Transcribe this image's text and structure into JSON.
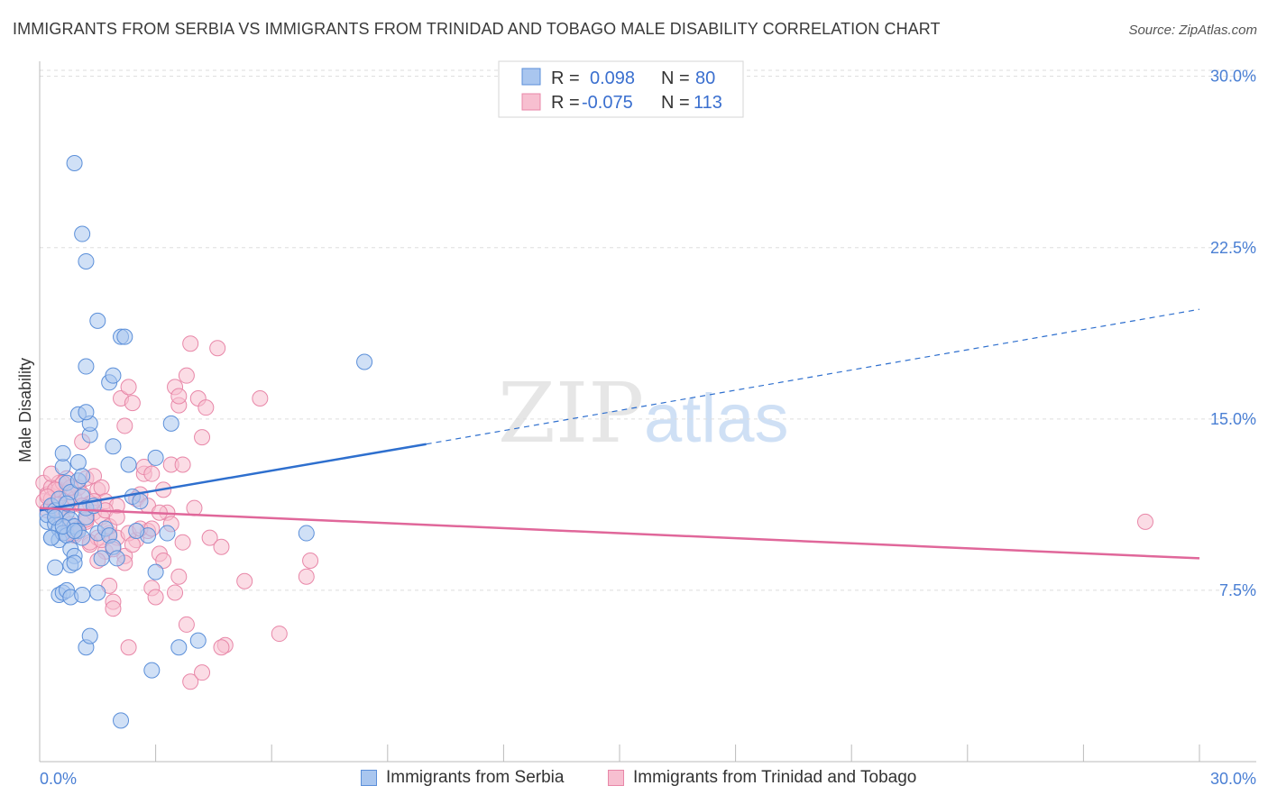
{
  "header": {
    "title": "IMMIGRANTS FROM SERBIA VS IMMIGRANTS FROM TRINIDAD AND TOBAGO MALE DISABILITY CORRELATION CHART",
    "source": "Source: ZipAtlas.com"
  },
  "watermark": {
    "zip": "ZIP",
    "atlas": "atlas"
  },
  "legend": {
    "rows": [
      {
        "r_label": "R =",
        "r_value": "0.098",
        "n_label": "N =",
        "n_value": "80"
      },
      {
        "r_label": "R =",
        "r_value": "-0.075",
        "n_label": "N =",
        "n_value": "113"
      }
    ]
  },
  "bottom_legend": {
    "serbia": "Immigrants from Serbia",
    "trinidad": "Immigrants from Trinidad and Tobago"
  },
  "colors": {
    "serbia_fill": "#a9c6ef",
    "serbia_stroke": "#5b8fd9",
    "serbia_line": "#2e6fce",
    "trinidad_fill": "#f7bfd0",
    "trinidad_stroke": "#e887a8",
    "trinidad_line": "#e0679a",
    "tick_text": "#4a7fd4",
    "grid": "#dddddd"
  },
  "chart_data": {
    "type": "scatter",
    "title": "IMMIGRANTS FROM SERBIA VS IMMIGRANTS FROM TRINIDAD AND TOBAGO MALE DISABILITY CORRELATION CHART",
    "xlabel": "",
    "ylabel": "Male Disability",
    "xlim": [
      0,
      30
    ],
    "ylim": [
      0,
      30.5
    ],
    "x_ticks": [
      "0.0%",
      "30.0%"
    ],
    "y_ticks": [
      {
        "value": 7.5,
        "label": "7.5%"
      },
      {
        "value": 15.0,
        "label": "15.0%"
      },
      {
        "value": 22.5,
        "label": "22.5%"
      },
      {
        "value": 30.0,
        "label": "30.0%"
      }
    ],
    "grid": "horizontal dashed",
    "legend_position": "top-center",
    "series": [
      {
        "name": "Immigrants from Serbia",
        "R": 0.098,
        "N": 80,
        "trend": {
          "x0": 0,
          "y0": 11.0,
          "x1": 10.0,
          "y1": 13.9,
          "extend_dashed_to_x": 30,
          "y_at_end": 19.8
        },
        "points": [
          [
            0.2,
            10.5
          ],
          [
            0.2,
            10.8
          ],
          [
            0.3,
            11.2
          ],
          [
            0.3,
            9.8
          ],
          [
            0.4,
            10.4
          ],
          [
            0.4,
            11.0
          ],
          [
            0.5,
            10.2
          ],
          [
            0.5,
            9.7
          ],
          [
            0.5,
            11.5
          ],
          [
            0.6,
            10.0
          ],
          [
            0.6,
            12.9
          ],
          [
            0.6,
            13.5
          ],
          [
            0.7,
            10.9
          ],
          [
            0.7,
            9.9
          ],
          [
            0.7,
            12.2
          ],
          [
            0.8,
            10.6
          ],
          [
            0.8,
            9.3
          ],
          [
            0.8,
            11.8
          ],
          [
            0.9,
            10.3
          ],
          [
            0.9,
            9.0
          ],
          [
            0.4,
            8.5
          ],
          [
            0.5,
            7.3
          ],
          [
            0.6,
            7.4
          ],
          [
            0.7,
            7.5
          ],
          [
            0.8,
            7.2
          ],
          [
            0.8,
            8.6
          ],
          [
            0.9,
            8.7
          ],
          [
            1.0,
            10.1
          ],
          [
            1.0,
            12.3
          ],
          [
            1.0,
            13.1
          ],
          [
            1.0,
            15.2
          ],
          [
            1.1,
            11.6
          ],
          [
            1.1,
            12.5
          ],
          [
            1.1,
            9.8
          ],
          [
            1.2,
            10.7
          ],
          [
            1.2,
            11.1
          ],
          [
            1.3,
            14.3
          ],
          [
            1.3,
            14.8
          ],
          [
            1.4,
            11.2
          ],
          [
            1.5,
            10.0
          ],
          [
            1.5,
            7.4
          ],
          [
            1.6,
            8.9
          ],
          [
            1.7,
            10.2
          ],
          [
            1.8,
            9.9
          ],
          [
            1.2,
            15.3
          ],
          [
            1.9,
            13.8
          ],
          [
            1.9,
            9.4
          ],
          [
            2.0,
            8.9
          ],
          [
            1.1,
            7.3
          ],
          [
            1.2,
            5.0
          ],
          [
            1.3,
            5.5
          ],
          [
            0.9,
            26.2
          ],
          [
            1.1,
            23.1
          ],
          [
            1.2,
            21.9
          ],
          [
            1.5,
            19.3
          ],
          [
            2.1,
            18.6
          ],
          [
            2.2,
            18.6
          ],
          [
            1.2,
            17.3
          ],
          [
            1.8,
            16.6
          ],
          [
            1.9,
            16.9
          ],
          [
            2.3,
            13.0
          ],
          [
            2.4,
            11.6
          ],
          [
            2.6,
            11.4
          ],
          [
            2.8,
            9.9
          ],
          [
            3.0,
            8.3
          ],
          [
            3.0,
            13.3
          ],
          [
            3.3,
            10.0
          ],
          [
            3.4,
            14.8
          ],
          [
            2.9,
            4.0
          ],
          [
            3.6,
            5.0
          ],
          [
            4.1,
            5.3
          ],
          [
            2.1,
            1.8
          ],
          [
            0.3,
            9.8
          ],
          [
            0.4,
            10.7
          ],
          [
            0.6,
            10.3
          ],
          [
            0.7,
            11.3
          ],
          [
            0.9,
            10.1
          ],
          [
            6.9,
            10.0
          ],
          [
            8.4,
            17.5
          ],
          [
            2.5,
            10.1
          ]
        ]
      },
      {
        "name": "Immigrants from Trinidad and Tobago",
        "R": -0.075,
        "N": 113,
        "trend": {
          "x0": 0,
          "y0": 11.1,
          "x1": 30,
          "y1": 8.9
        },
        "points": [
          [
            0.1,
            11.4
          ],
          [
            0.1,
            12.2
          ],
          [
            0.2,
            11.0
          ],
          [
            0.2,
            11.7
          ],
          [
            0.3,
            12.0
          ],
          [
            0.3,
            11.5
          ],
          [
            0.4,
            10.8
          ],
          [
            0.4,
            11.3
          ],
          [
            0.5,
            12.2
          ],
          [
            0.5,
            11.9
          ],
          [
            0.6,
            11.1
          ],
          [
            0.6,
            10.6
          ],
          [
            0.7,
            11.8
          ],
          [
            0.7,
            12.4
          ],
          [
            0.8,
            11.2
          ],
          [
            0.8,
            10.4
          ],
          [
            0.9,
            9.9
          ],
          [
            0.9,
            11.5
          ],
          [
            1.0,
            12.0
          ],
          [
            1.0,
            10.2
          ],
          [
            1.1,
            14.0
          ],
          [
            1.1,
            11.7
          ],
          [
            1.2,
            10.5
          ],
          [
            1.2,
            12.4
          ],
          [
            1.3,
            11.3
          ],
          [
            1.3,
            9.5
          ],
          [
            1.4,
            10.9
          ],
          [
            1.4,
            12.5
          ],
          [
            1.5,
            11.9
          ],
          [
            1.5,
            9.8
          ],
          [
            1.6,
            10.7
          ],
          [
            1.6,
            12.0
          ],
          [
            1.7,
            11.4
          ],
          [
            1.7,
            9.2
          ],
          [
            1.8,
            10.0
          ],
          [
            1.8,
            7.7
          ],
          [
            1.9,
            7.0
          ],
          [
            1.9,
            6.7
          ],
          [
            2.0,
            11.2
          ],
          [
            2.0,
            9.8
          ],
          [
            2.1,
            15.9
          ],
          [
            2.2,
            14.7
          ],
          [
            2.3,
            16.4
          ],
          [
            2.4,
            15.7
          ],
          [
            2.5,
            11.5
          ],
          [
            2.5,
            9.7
          ],
          [
            2.6,
            11.7
          ],
          [
            2.7,
            12.6
          ],
          [
            2.7,
            12.9
          ],
          [
            2.8,
            11.2
          ],
          [
            2.8,
            10.1
          ],
          [
            2.9,
            7.6
          ],
          [
            3.0,
            7.2
          ],
          [
            3.1,
            9.1
          ],
          [
            3.2,
            11.9
          ],
          [
            3.3,
            10.9
          ],
          [
            3.4,
            13.0
          ],
          [
            3.5,
            16.4
          ],
          [
            3.6,
            15.6
          ],
          [
            3.6,
            16.0
          ],
          [
            3.7,
            13.0
          ],
          [
            3.8,
            16.9
          ],
          [
            3.9,
            18.3
          ],
          [
            4.0,
            11.1
          ],
          [
            4.1,
            15.9
          ],
          [
            4.2,
            14.2
          ],
          [
            4.3,
            15.5
          ],
          [
            4.4,
            9.8
          ],
          [
            4.6,
            18.1
          ],
          [
            4.7,
            9.4
          ],
          [
            4.8,
            5.1
          ],
          [
            5.3,
            7.9
          ],
          [
            5.7,
            15.9
          ],
          [
            6.2,
            5.6
          ],
          [
            6.9,
            8.1
          ],
          [
            7.0,
            8.8
          ],
          [
            3.5,
            7.4
          ],
          [
            3.6,
            8.1
          ],
          [
            3.8,
            6.0
          ],
          [
            3.9,
            3.5
          ],
          [
            4.2,
            3.9
          ],
          [
            4.7,
            5.0
          ],
          [
            2.3,
            5.0
          ],
          [
            3.2,
            8.8
          ],
          [
            2.9,
            12.6
          ],
          [
            2.3,
            10.0
          ],
          [
            2.2,
            9.0
          ],
          [
            1.9,
            9.3
          ],
          [
            1.5,
            8.8
          ],
          [
            1.3,
            9.6
          ],
          [
            0.9,
            10.0
          ],
          [
            0.8,
            12.0
          ],
          [
            0.6,
            12.2
          ],
          [
            0.5,
            11.0
          ],
          [
            0.4,
            11.9
          ],
          [
            0.3,
            12.6
          ],
          [
            0.2,
            11.6
          ],
          [
            1.1,
            11.2
          ],
          [
            1.2,
            10.6
          ],
          [
            1.4,
            11.4
          ],
          [
            1.6,
            9.7
          ],
          [
            1.7,
            11.0
          ],
          [
            1.8,
            10.3
          ],
          [
            2.0,
            10.7
          ],
          [
            2.2,
            8.7
          ],
          [
            2.4,
            9.5
          ],
          [
            2.6,
            10.2
          ],
          [
            2.9,
            10.2
          ],
          [
            3.1,
            10.9
          ],
          [
            3.4,
            10.4
          ],
          [
            3.7,
            9.6
          ],
          [
            28.6,
            10.5
          ],
          [
            0.7,
            10.0
          ]
        ]
      }
    ]
  }
}
